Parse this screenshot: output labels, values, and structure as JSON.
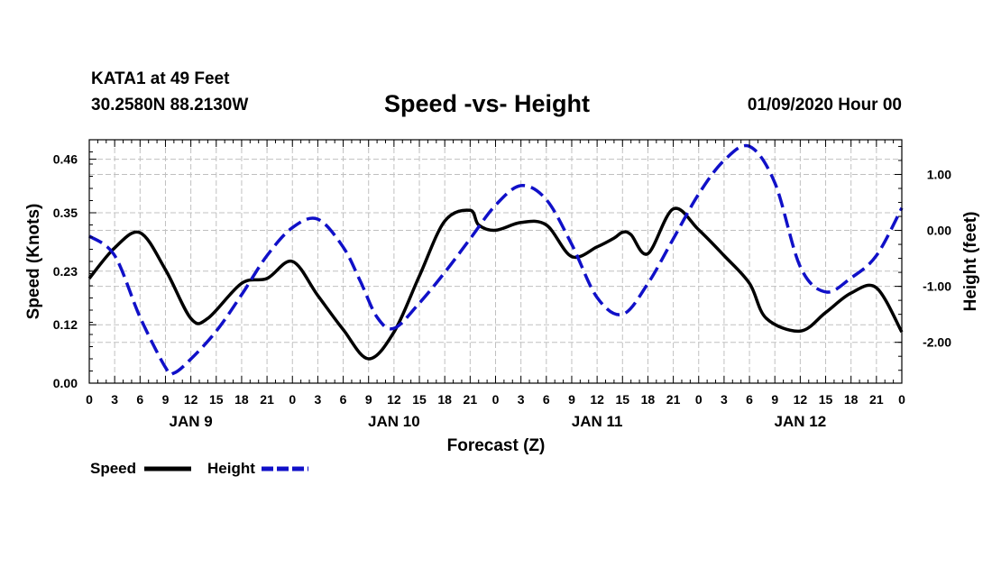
{
  "header": {
    "station": "KATA1 at 49 Feet",
    "coords": "30.2580N 88.2130W",
    "title": "Speed -vs- Height",
    "datetime": "01/09/2020 Hour 00"
  },
  "colors": {
    "speed": "#000000",
    "height": "#1010c8",
    "grid": "#c0c0c0"
  },
  "chart_data": {
    "type": "line",
    "title": "Speed -vs- Height",
    "xlabel": "Forecast (Z)",
    "ylabel": "Speed (Knots)",
    "y2label": "Height (feet)",
    "xlim": [
      0,
      96
    ],
    "ylim": [
      0,
      0.5
    ],
    "y2lim": [
      -2.73,
      1.62
    ],
    "x_ticks": [
      0,
      3,
      6,
      9,
      12,
      15,
      18,
      21,
      24,
      27,
      30,
      33,
      36,
      39,
      42,
      45,
      48,
      51,
      54,
      57,
      60,
      63,
      66,
      69,
      72,
      75,
      78,
      81,
      84,
      87,
      90,
      93,
      96
    ],
    "x_tick_labels": [
      "0",
      "3",
      "6",
      "9",
      "12",
      "15",
      "18",
      "21",
      "0",
      "3",
      "6",
      "9",
      "12",
      "15",
      "18",
      "21",
      "0",
      "3",
      "6",
      "9",
      "12",
      "15",
      "18",
      "21",
      "0",
      "3",
      "6",
      "9",
      "12",
      "15",
      "18",
      "21",
      "0"
    ],
    "day_labels": [
      {
        "x": 12,
        "label": "JAN 9"
      },
      {
        "x": 36,
        "label": "JAN 10"
      },
      {
        "x": 60,
        "label": "JAN 11"
      },
      {
        "x": 84,
        "label": "JAN 12"
      }
    ],
    "y_ticks": [
      0,
      0.12,
      0.23,
      0.35,
      0.46
    ],
    "y_tick_labels": [
      "0.00",
      "0.12",
      "0.23",
      "0.35",
      "0.46"
    ],
    "y2_ticks": [
      -2,
      -1,
      0,
      1
    ],
    "y2_tick_labels": [
      "-2.00",
      "-1.00",
      "0.00",
      "1.00"
    ],
    "grid": true,
    "legend": {
      "position": "bottom-left",
      "entries": [
        "Speed",
        "Height"
      ]
    },
    "series": [
      {
        "name": "Speed",
        "axis": "left",
        "style": "solid",
        "x": [
          0,
          3,
          6,
          9,
          12,
          14,
          18,
          21,
          24,
          27,
          30,
          33,
          36,
          39,
          42,
          45,
          46,
          48,
          51,
          54,
          57,
          60,
          62,
          63,
          64,
          66,
          69,
          72,
          75,
          78,
          80,
          84,
          87,
          90,
          93,
          96
        ],
        "y": [
          0.215,
          0.278,
          0.309,
          0.233,
          0.133,
          0.133,
          0.205,
          0.215,
          0.25,
          0.18,
          0.11,
          0.05,
          0.105,
          0.22,
          0.333,
          0.355,
          0.325,
          0.314,
          0.33,
          0.325,
          0.26,
          0.28,
          0.298,
          0.31,
          0.305,
          0.266,
          0.358,
          0.315,
          0.262,
          0.205,
          0.133,
          0.107,
          0.145,
          0.185,
          0.196,
          0.105
        ]
      },
      {
        "name": "Height",
        "axis": "right",
        "style": "dashed",
        "x": [
          0,
          3,
          6,
          9,
          10,
          12,
          15,
          18,
          21,
          24,
          27,
          30,
          32,
          34,
          36,
          39,
          42,
          45,
          48,
          51,
          54,
          57,
          60,
          63,
          66,
          69,
          72,
          75,
          78,
          81,
          84,
          87,
          90,
          93,
          96
        ],
        "y": [
          -0.1,
          -0.45,
          -1.55,
          -2.45,
          -2.55,
          -2.3,
          -1.8,
          -1.15,
          -0.45,
          0.05,
          0.2,
          -0.3,
          -0.9,
          -1.55,
          -1.75,
          -1.3,
          -0.75,
          -0.15,
          0.45,
          0.8,
          0.55,
          -0.25,
          -1.2,
          -1.5,
          -0.95,
          -0.15,
          0.65,
          1.25,
          1.5,
          0.85,
          -0.65,
          -1.1,
          -0.85,
          -0.45,
          0.4
        ]
      }
    ]
  }
}
